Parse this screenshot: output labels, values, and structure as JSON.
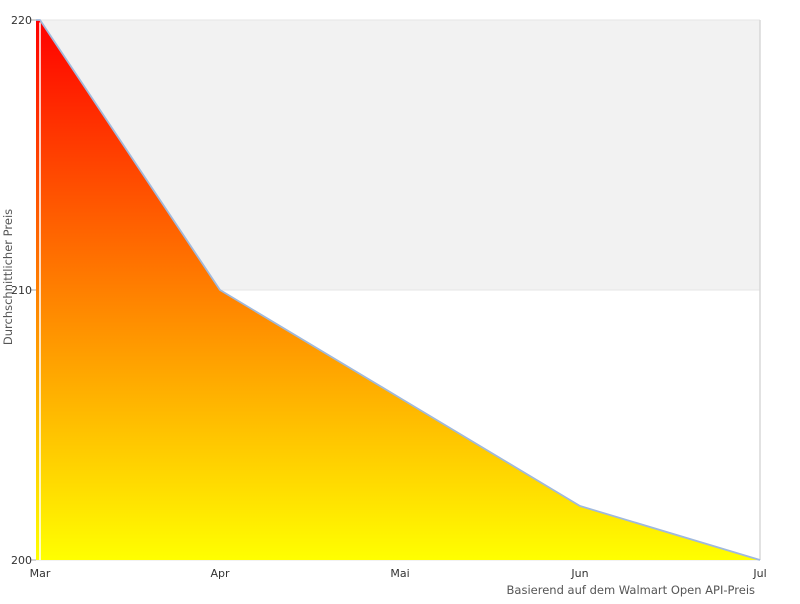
{
  "chart_data": {
    "type": "area",
    "categories": [
      "Mar",
      "Apr",
      "Mai",
      "Jun",
      "Jul"
    ],
    "values": [
      220,
      210,
      206,
      202,
      200
    ],
    "series": [
      {
        "name": "Durchschnittlicher Preis",
        "values": [
          220,
          210,
          206,
          202,
          200
        ]
      }
    ],
    "title": "",
    "xlabel": "Basierend auf dem Walmart Open API-Preis",
    "ylabel": "Durchschnittlicher Preis",
    "ylim": [
      200,
      220
    ],
    "yticks": [
      200,
      210,
      220
    ],
    "grid": "horizontal",
    "alternate_band": {
      "from": 210,
      "to": 220
    },
    "legend_position": "none",
    "colors": {
      "background": "#ffffff",
      "area_gradient_top": "#ff0000",
      "area_gradient_bottom": "#ffff00",
      "line": "#a0b9dc",
      "band": "#f2f2f2",
      "gridline": "#e6e6e6",
      "plot_border": "#d8d8d8",
      "tick_mark": "#a6a6a6",
      "tick_text": "#333333",
      "axis_title_text": "#555555",
      "axis_overlay_line": "#ffffff"
    }
  }
}
